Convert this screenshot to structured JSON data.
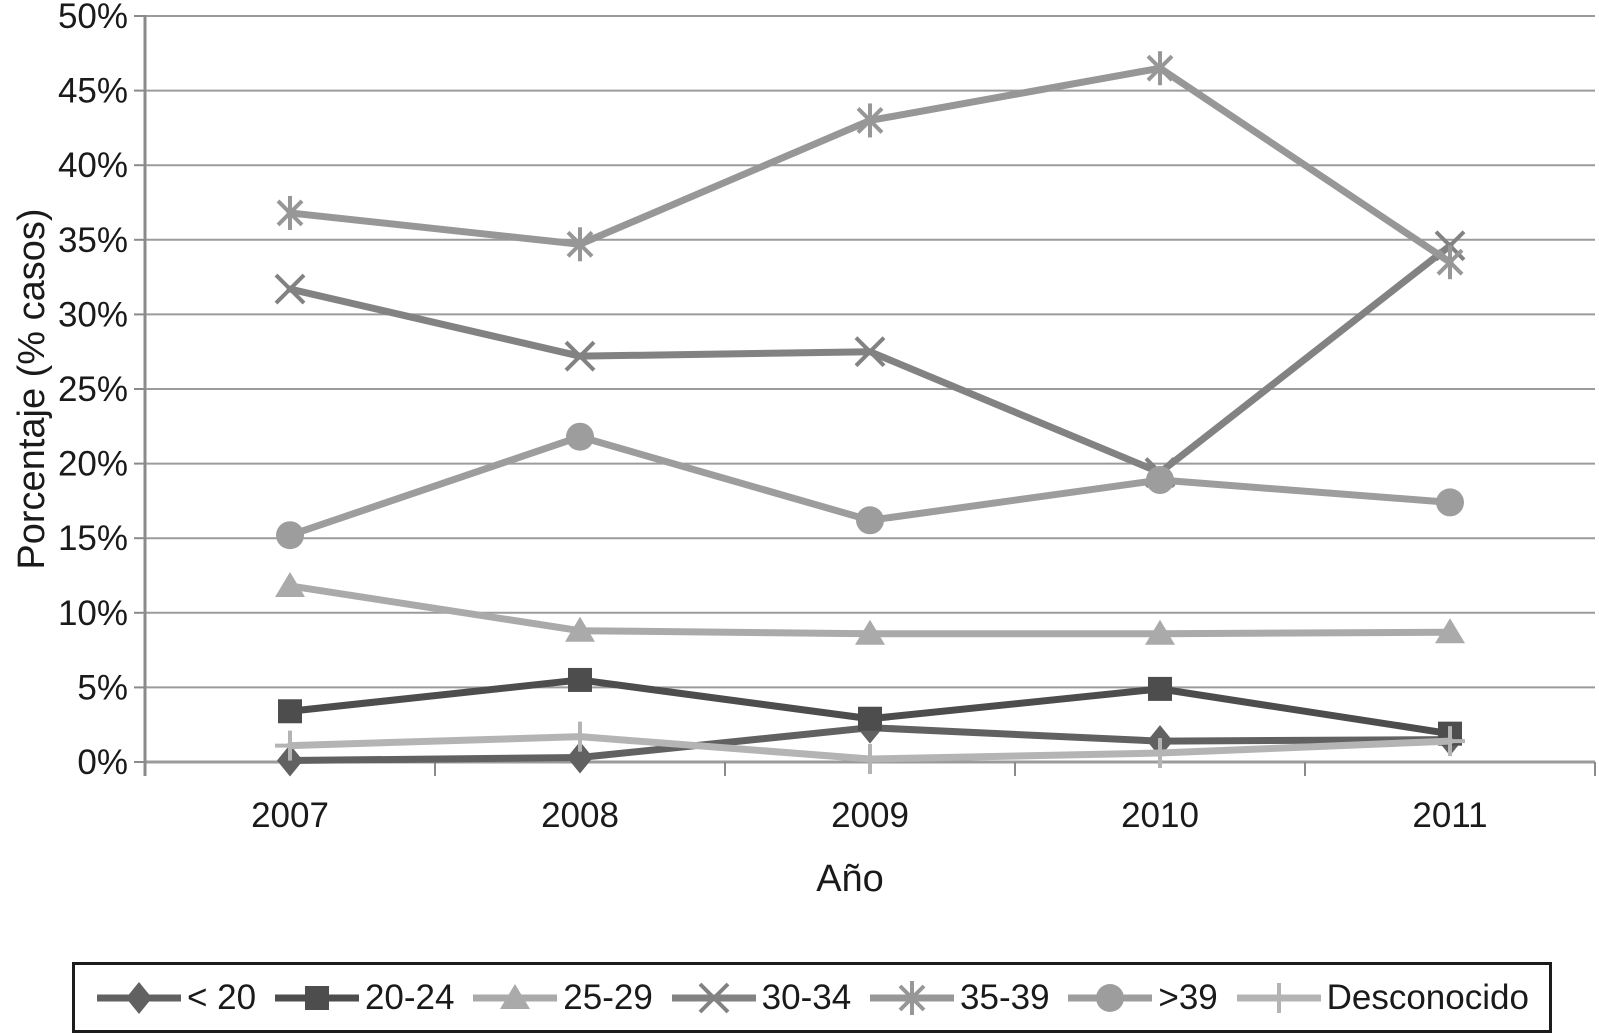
{
  "chart_data": {
    "type": "line",
    "title": "",
    "xlabel": "Año",
    "ylabel": "Porcentaje (% casos)",
    "categories": [
      "2007",
      "2008",
      "2009",
      "2010",
      "2011"
    ],
    "ylim": [
      0,
      50
    ],
    "y_tick_step": 5,
    "y_tick_labels": [
      "0%",
      "5%",
      "10%",
      "15%",
      "20%",
      "25%",
      "30%",
      "35%",
      "40%",
      "45%",
      "50%"
    ],
    "grid": true,
    "legend_position": "bottom",
    "series": [
      {
        "name": "< 20",
        "marker": "diamond",
        "color": "#616161",
        "values": [
          0.1,
          0.3,
          2.3,
          1.4,
          1.5
        ]
      },
      {
        "name": "20-24",
        "marker": "square",
        "color": "#4d4d4d",
        "values": [
          3.4,
          5.5,
          2.9,
          4.9,
          1.9
        ]
      },
      {
        "name": "25-29",
        "marker": "triangle",
        "color": "#aaaaaa",
        "values": [
          11.8,
          8.8,
          8.6,
          8.6,
          8.7
        ]
      },
      {
        "name": "30-34",
        "marker": "x",
        "color": "#828282",
        "values": [
          31.7,
          27.2,
          27.5,
          19.4,
          34.6
        ]
      },
      {
        "name": "35-39",
        "marker": "asterisk",
        "color": "#979797",
        "values": [
          36.8,
          34.7,
          43.0,
          46.5,
          33.5
        ]
      },
      {
        "name": ">39",
        "marker": "circle",
        "color": "#9d9d9d",
        "values": [
          15.2,
          21.8,
          16.2,
          18.9,
          17.4
        ]
      },
      {
        "name": "Desconocido",
        "marker": "plus",
        "color": "#b4b4b4",
        "values": [
          1.1,
          1.7,
          0.2,
          0.6,
          1.4
        ]
      }
    ]
  }
}
